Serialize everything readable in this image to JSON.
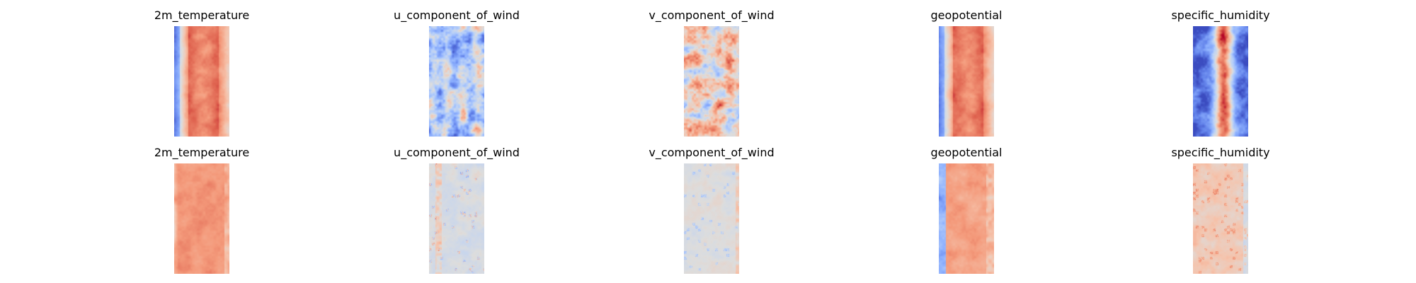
{
  "chart_data": {
    "type": "heatmap",
    "colormap": "coolwarm",
    "grid": false,
    "axes_visible": false,
    "rows": [
      {
        "panels": [
          {
            "title": "2m_temperature",
            "pattern": "warm-band-cold-left"
          },
          {
            "title": "u_component_of_wind",
            "pattern": "mixed-blue"
          },
          {
            "title": "v_component_of_wind",
            "pattern": "mixed-red"
          },
          {
            "title": "geopotential",
            "pattern": "warm-band-cold-left"
          },
          {
            "title": "specific_humidity",
            "pattern": "blue-edges-red-core"
          }
        ]
      },
      {
        "panels": [
          {
            "title": "2m_temperature",
            "pattern": "mostly-warm"
          },
          {
            "title": "u_component_of_wind",
            "pattern": "faint-neutral-red-stripes"
          },
          {
            "title": "v_component_of_wind",
            "pattern": "faint-neutral"
          },
          {
            "title": "geopotential",
            "pattern": "warm-blue-left"
          },
          {
            "title": "specific_humidity",
            "pattern": "light-warm-speckle"
          }
        ]
      }
    ]
  }
}
